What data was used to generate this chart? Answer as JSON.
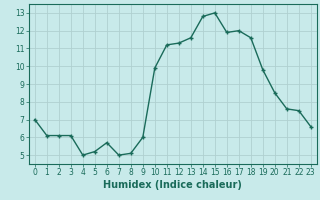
{
  "x": [
    0,
    1,
    2,
    3,
    4,
    5,
    6,
    7,
    8,
    9,
    10,
    11,
    12,
    13,
    14,
    15,
    16,
    17,
    18,
    19,
    20,
    21,
    22,
    23
  ],
  "y": [
    7.0,
    6.1,
    6.1,
    6.1,
    5.0,
    5.2,
    5.7,
    5.0,
    5.1,
    6.0,
    9.9,
    11.2,
    11.3,
    11.6,
    12.8,
    13.0,
    11.9,
    12.0,
    11.6,
    9.8,
    8.5,
    7.6,
    7.5,
    6.6
  ],
  "line_color": "#1a6b5a",
  "marker": "+",
  "marker_size": 3,
  "marker_edge_width": 1.0,
  "background_color": "#c8eaea",
  "grid_color": "#b0d0d0",
  "xlabel": "Humidex (Indice chaleur)",
  "xlabel_fontsize": 7,
  "xlabel_bold": true,
  "xlim": [
    -0.5,
    23.5
  ],
  "ylim": [
    4.5,
    13.5
  ],
  "yticks": [
    5,
    6,
    7,
    8,
    9,
    10,
    11,
    12,
    13
  ],
  "xticks": [
    0,
    1,
    2,
    3,
    4,
    5,
    6,
    7,
    8,
    9,
    10,
    11,
    12,
    13,
    14,
    15,
    16,
    17,
    18,
    19,
    20,
    21,
    22,
    23
  ],
  "tick_fontsize": 5.5,
  "line_width": 1.0,
  "spine_color": "#1a6b5a",
  "tick_color": "#1a6b5a",
  "label_color": "#1a6b5a"
}
